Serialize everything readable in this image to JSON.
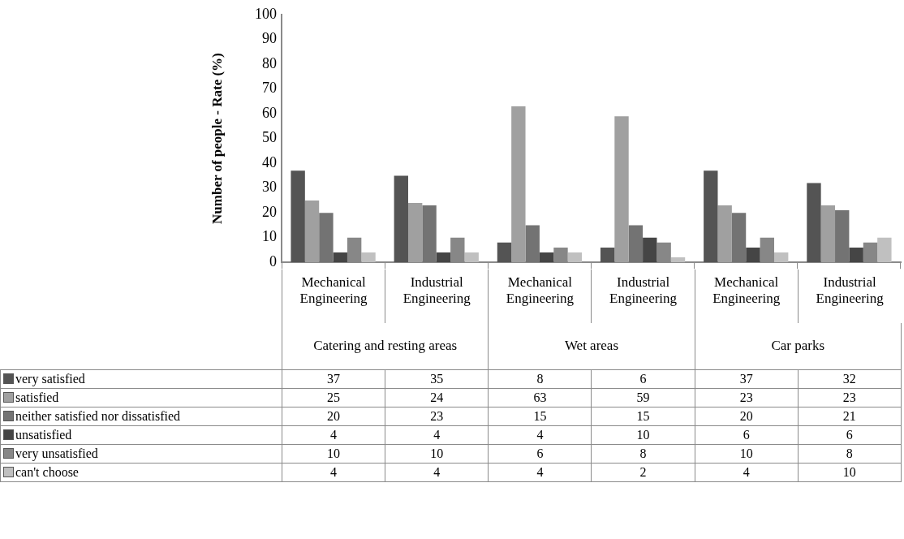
{
  "chart_data": {
    "type": "bar",
    "ylabel": "Number of people - Rate (%)",
    "categories": [
      "Mechanical Engineering",
      "Industrial Engineering",
      "Mechanical Engineering",
      "Industrial Engineering",
      "Mechanical Engineering",
      "Industrial Engineering"
    ],
    "annotations": [
      "Catering and resting areas",
      "Wet areas",
      "Car parks"
    ],
    "series": [
      {
        "name": "very satisfied",
        "color": "#545454",
        "values": [
          37,
          35,
          8,
          6,
          37,
          32
        ]
      },
      {
        "name": "satisfied",
        "color": "#a0a0a0",
        "values": [
          25,
          24,
          63,
          59,
          23,
          23
        ]
      },
      {
        "name": "neither satisfied nor dissatisfied",
        "color": "#737373",
        "values": [
          20,
          23,
          15,
          15,
          20,
          21
        ]
      },
      {
        "name": "unsatisfied",
        "color": "#454545",
        "values": [
          4,
          4,
          4,
          10,
          6,
          6
        ]
      },
      {
        "name": "very unsatisfied",
        "color": "#878787",
        "values": [
          10,
          10,
          6,
          8,
          10,
          8
        ]
      },
      {
        "name": "can't choose",
        "color": "#c0c0c0",
        "values": [
          4,
          4,
          4,
          2,
          4,
          10
        ]
      }
    ],
    "ylim": [
      0,
      100
    ],
    "yticks": [
      0,
      10,
      20,
      30,
      40,
      50,
      60,
      70,
      80,
      90,
      100
    ],
    "grid": false,
    "legend": "bottom",
    "data_labels": true
  }
}
